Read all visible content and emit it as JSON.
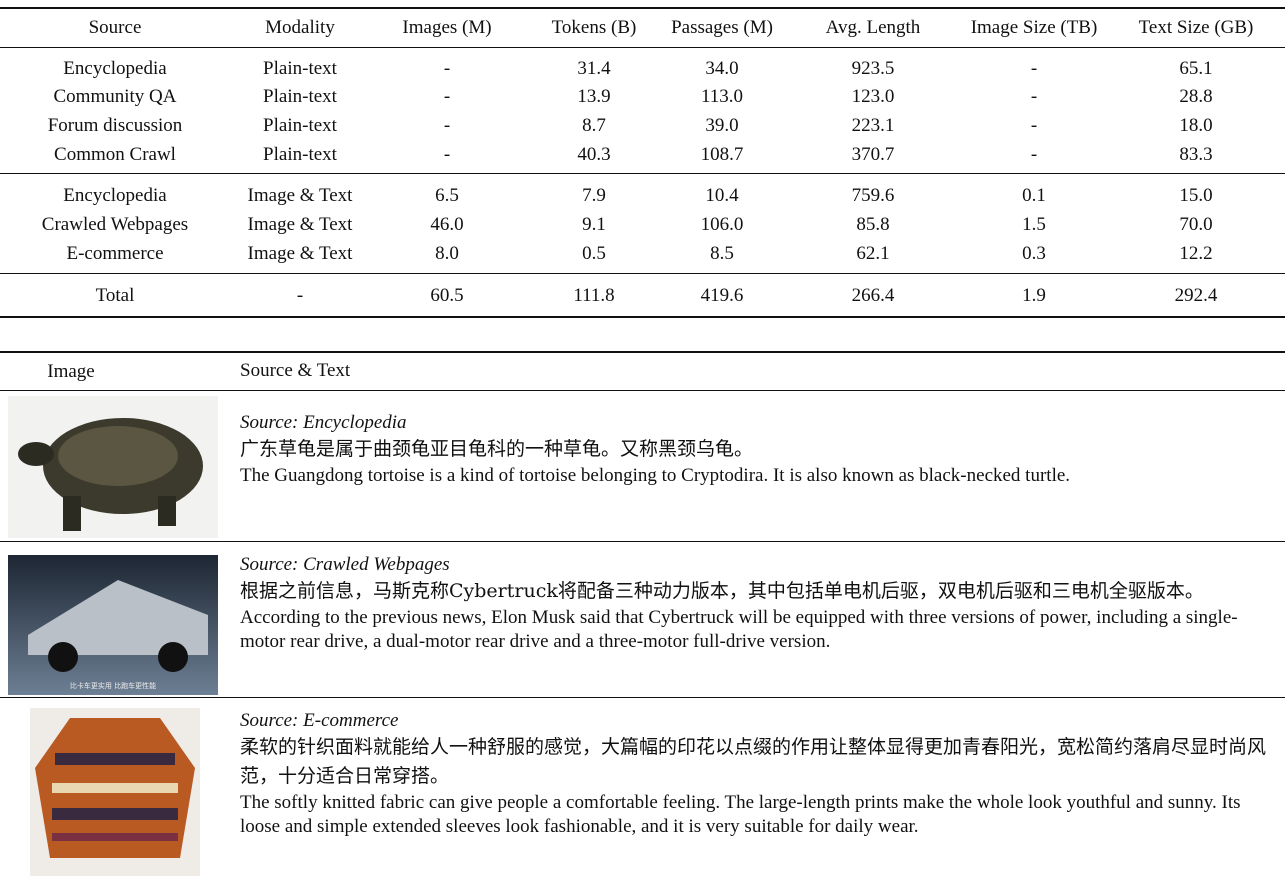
{
  "table1": {
    "columns": [
      "Source",
      "Modality",
      "Images (M)",
      "Tokens (B)",
      "Passages (M)",
      "Avg. Length",
      "Image Size (TB)",
      "Text Size (GB)"
    ],
    "rows": [
      [
        "Encyclopedia",
        "Plain-text",
        "-",
        "31.4",
        "34.0",
        "923.5",
        "-",
        "65.1"
      ],
      [
        "Community QA",
        "Plain-text",
        "-",
        "13.9",
        "113.0",
        "123.0",
        "-",
        "28.8"
      ],
      [
        "Forum discussion",
        "Plain-text",
        "-",
        "8.7",
        "39.0",
        "223.1",
        "-",
        "18.0"
      ],
      [
        "Common Crawl",
        "Plain-text",
        "-",
        "40.3",
        "108.7",
        "370.7",
        "-",
        "83.3"
      ],
      [
        "Encyclopedia",
        "Image & Text",
        "6.5",
        "7.9",
        "10.4",
        "759.6",
        "0.1",
        "15.0"
      ],
      [
        "Crawled Webpages",
        "Image & Text",
        "46.0",
        "9.1",
        "106.0",
        "85.8",
        "1.5",
        "70.0"
      ],
      [
        "E-commerce",
        "Image & Text",
        "8.0",
        "0.5",
        "8.5",
        "62.1",
        "0.3",
        "12.2"
      ],
      [
        "Total",
        "-",
        "60.5",
        "111.8",
        "419.6",
        "266.4",
        "1.9",
        "292.4"
      ]
    ]
  },
  "table2": {
    "columns": [
      "Image",
      "Source & Text"
    ],
    "rows": [
      {
        "source": "Source: Encyclopedia",
        "zh": "广东草龟是属于曲颈龟亚目龟科的一种草龟。又称黑颈乌龟。",
        "en": "The Guangdong tortoise is a kind of tortoise belonging to Cryptodira. It is also known as black-necked turtle."
      },
      {
        "source": "Source: Crawled Webpages",
        "image_text": "比卡车更实用 比跑车更性能",
        "zh": "根据之前信息，马斯克称Cybertruck将配备三种动力版本，其中包括单电机后驱，双电机后驱和三电机全驱版本。",
        "en": "According to the previous news, Elon Musk said that Cybertruck will be equipped with three versions of power, including a single-motor rear drive, a dual-motor rear drive and a three-motor full-drive version."
      },
      {
        "source": "Source: E-commerce",
        "zh": "柔软的针织面料就能给人一种舒服的感觉，大篇幅的印花以点缀的作用让整体显得更加青春阳光，宽松简约落肩尽显时尚风范，十分适合日常穿搭。",
        "en": "The softly knitted fabric can give people a comfortable feeling. The large-length prints make the whole look youthful and sunny. Its loose and simple extended sleeves look fashionable, and it is very suitable for daily wear."
      }
    ]
  }
}
